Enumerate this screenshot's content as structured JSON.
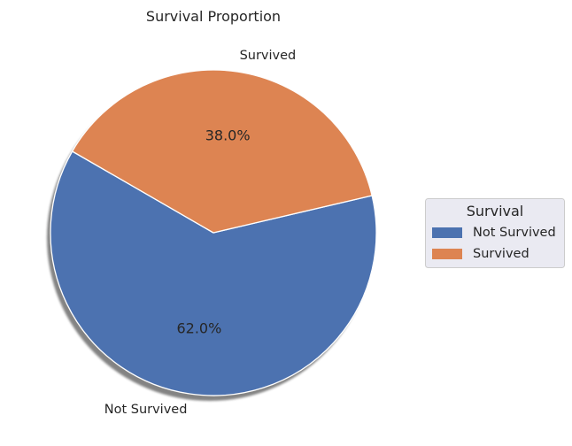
{
  "chart_data": {
    "type": "pie",
    "title": "Survival Proportion",
    "categories": [
      "Not Survived",
      "Survived"
    ],
    "values": [
      62.0,
      38.0
    ],
    "value_labels": [
      "62.0%",
      "38.0%"
    ],
    "colors": [
      "#4c72b0",
      "#dd8452"
    ],
    "start_angle_deg": 150,
    "direction": "counterclockwise",
    "shadow": true,
    "legend": {
      "title": "Survival",
      "placement": "center-right",
      "entries": [
        "Not Survived",
        "Survived"
      ]
    }
  }
}
